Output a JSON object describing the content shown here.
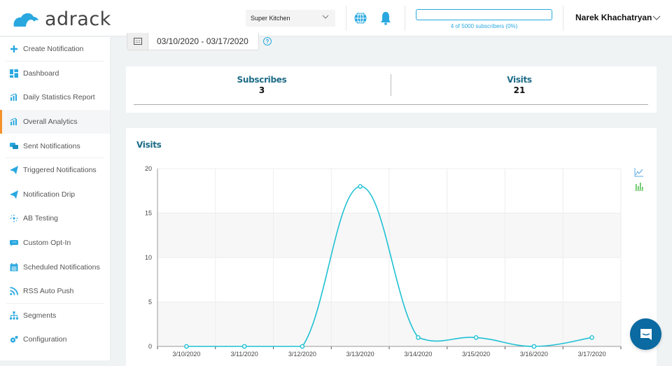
{
  "header": {
    "logo_text": "adrack",
    "site_select": "Super Kitchen",
    "subscribers_text": "4 of 5000 subscribers (0%)",
    "subscribers_progress": 0,
    "user_name": "Narek Khachatryan",
    "accent": "#29a8e0"
  },
  "sidebar": {
    "active": "Overall Analytics",
    "items": [
      {
        "label": "Create Notification",
        "icon": "plus-icon"
      },
      {
        "label": "Dashboard",
        "icon": "dashboard-icon"
      },
      {
        "label": "Daily Statistics Report",
        "icon": "bar-chart-icon"
      },
      {
        "label": "Overall Analytics",
        "icon": "bar-chart-icon"
      },
      {
        "label": "Sent Notifications",
        "icon": "chat-bubbles-icon"
      },
      {
        "label": "Triggered Notifications",
        "icon": "paper-plane-icon"
      },
      {
        "label": "Notification Drip",
        "icon": "paper-plane-icon"
      },
      {
        "label": "AB Testing",
        "icon": "split-icon"
      },
      {
        "label": "Custom Opt-In",
        "icon": "optin-icon"
      },
      {
        "label": "Scheduled Notifications",
        "icon": "calendar-icon"
      },
      {
        "label": "RSS Auto Push",
        "icon": "rss-icon"
      },
      {
        "label": "Segments",
        "icon": "sitemap-icon"
      },
      {
        "label": "Configuration",
        "icon": "gears-icon"
      }
    ]
  },
  "filters": {
    "date_range": "03/10/2020 - 03/17/2020",
    "help": "?"
  },
  "stats": {
    "subscribes_label": "Subscribes",
    "subscribes_value": "3",
    "visits_label": "Visits",
    "visits_value": "21"
  },
  "chart_card": {
    "title": "Visits",
    "tools": [
      "line-chart-icon",
      "bar-chart-icon"
    ]
  },
  "chart_data": {
    "type": "line",
    "title": "Visits",
    "xlabel": "",
    "ylabel": "",
    "categories": [
      "3/10/2020",
      "3/11/2020",
      "3/12/2020",
      "3/13/2020",
      "3/14/2020",
      "3/15/2020",
      "3/16/2020",
      "3/17/2020"
    ],
    "series": [
      {
        "name": "Visits",
        "values": [
          0,
          0,
          0,
          18,
          1,
          1,
          0,
          1
        ],
        "color": "#1fc1d4"
      }
    ],
    "ylim": [
      0,
      20
    ],
    "yticks": [
      0,
      5,
      10,
      15,
      20
    ],
    "grid": true,
    "smooth": true
  }
}
